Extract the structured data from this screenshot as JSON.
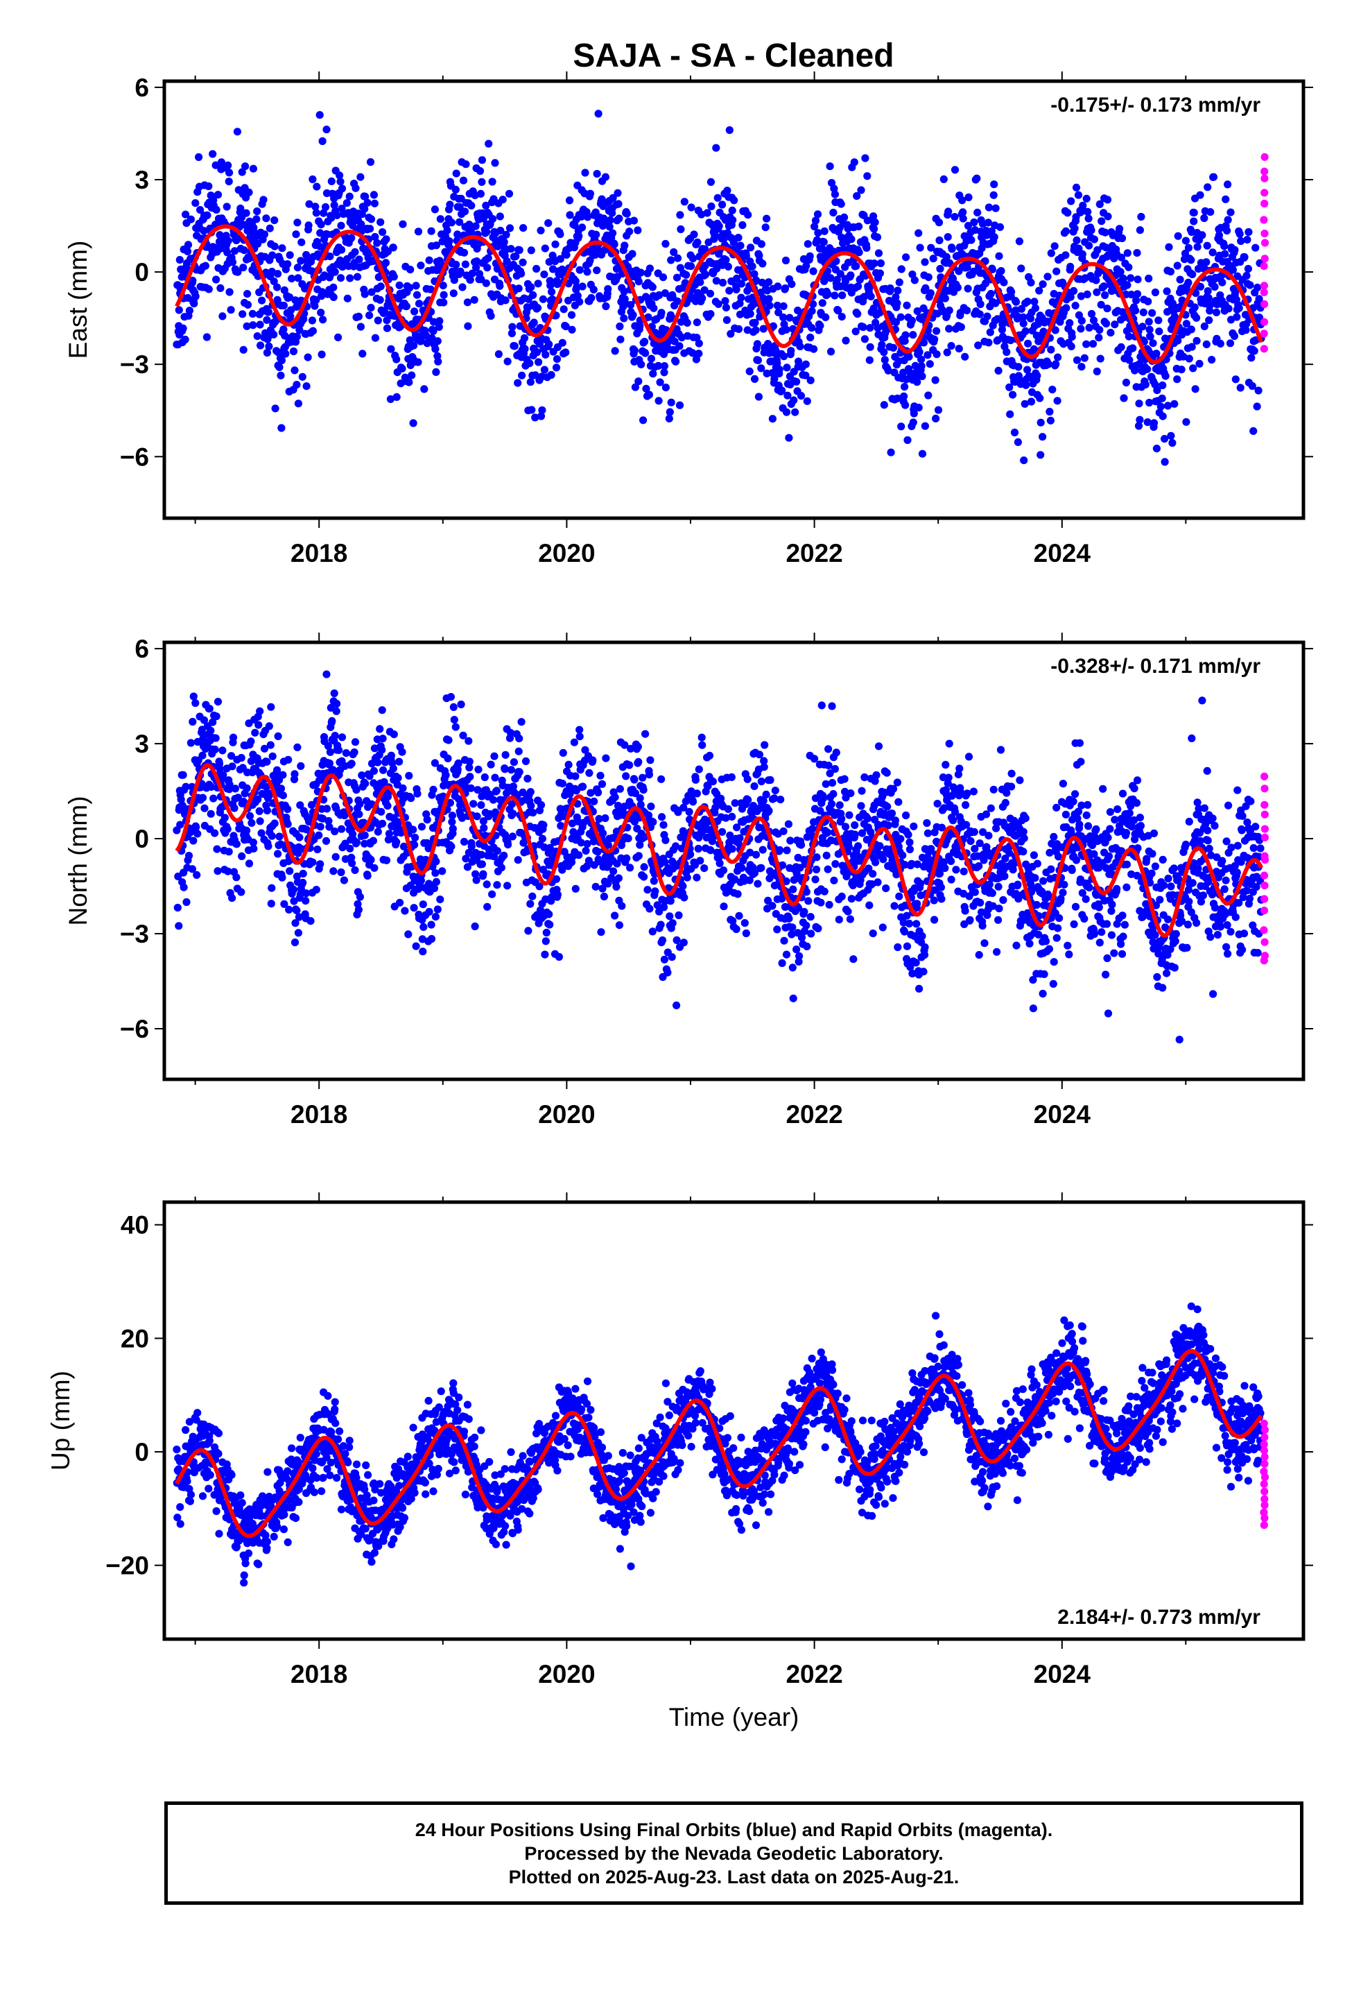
{
  "title": "SAJA  - SA - Cleaned",
  "colors": {
    "final": "#0000ff",
    "rapid": "#ff00ff",
    "model": "#ff0000",
    "axis": "#000000"
  },
  "chart_data": [
    {
      "type": "scatter",
      "ylabel": "East (mm)",
      "xlabel": "",
      "xlim": [
        2016.75,
        2025.95
      ],
      "ylim": [
        -8,
        6.2
      ],
      "xticks": [
        2018,
        2020,
        2022,
        2024
      ],
      "yticks": [
        -6,
        -3,
        0,
        3,
        6
      ],
      "ytick_labels": [
        "−6",
        "−3",
        "0",
        "3",
        "6"
      ],
      "rate_text": "-0.175+/- 0.173 mm/yr",
      "rate_pos": "top-right",
      "model": {
        "start": 2016.85,
        "end": 2025.61,
        "offset": 0.2,
        "trend": -0.175,
        "annual_amp": 1.55,
        "annual_phase": 2017.25,
        "semi_amp": 0.2,
        "semi_phase": 2017.0,
        "noise": 1.3,
        "seed": 11
      },
      "rapid": {
        "start": 2025.63,
        "end": 2025.64,
        "count": 16,
        "ymin": -2.4,
        "ymax": 3.8,
        "seed": 21
      }
    },
    {
      "type": "scatter",
      "ylabel": "North (mm)",
      "xlabel": "",
      "xlim": [
        2016.75,
        2025.95
      ],
      "ylim": [
        -7.6,
        6.2
      ],
      "xticks": [
        2018,
        2020,
        2022,
        2024
      ],
      "yticks": [
        -6,
        -3,
        0,
        3,
        6
      ],
      "ytick_labels": [
        "−6",
        "−3",
        "0",
        "3",
        "6"
      ],
      "rate_text": "-0.328+/- 0.171 mm/yr",
      "rate_pos": "top-right",
      "model": {
        "start": 2016.85,
        "end": 2025.61,
        "offset": 1.2,
        "trend": -0.328,
        "annual_amp": 0.6,
        "annual_phase": 2017.3,
        "semi_amp": 1.05,
        "semi_phase": 2017.08,
        "noise": 1.2,
        "seed": 37
      },
      "rapid": {
        "start": 2025.63,
        "end": 2025.64,
        "count": 16,
        "ymin": -4.0,
        "ymax": 2.0,
        "seed": 41
      }
    },
    {
      "type": "scatter",
      "ylabel": "Up (mm)",
      "xlabel": "Time (year)",
      "xlim": [
        2016.75,
        2025.95
      ],
      "ylim": [
        -33,
        44
      ],
      "xticks": [
        2018,
        2020,
        2022,
        2024
      ],
      "yticks": [
        -20,
        0,
        20,
        40
      ],
      "ytick_labels": [
        "−20",
        "0",
        "20",
        "40"
      ],
      "rate_text": "2.184+/- 0.773 mm/yr",
      "rate_pos": "bottom-right",
      "model": {
        "start": 2016.85,
        "end": 2025.61,
        "offset": -8.5,
        "trend": 2.184,
        "annual_amp": 7.5,
        "annual_phase": 2017.0,
        "semi_amp": 1.5,
        "semi_phase": 2017.1,
        "noise": 3.5,
        "seed": 53
      },
      "rapid": {
        "start": 2025.63,
        "end": 2025.64,
        "count": 16,
        "ymin": -13.0,
        "ymax": 5.0,
        "seed": 61
      }
    }
  ],
  "footer": {
    "line1": "24 Hour Positions Using Final Orbits (blue) and Rapid Orbits (magenta).",
    "line2": "Processed by the Nevada Geodetic Laboratory.",
    "line3": "Plotted on 2025-Aug-23. Last data on 2025-Aug-21."
  }
}
